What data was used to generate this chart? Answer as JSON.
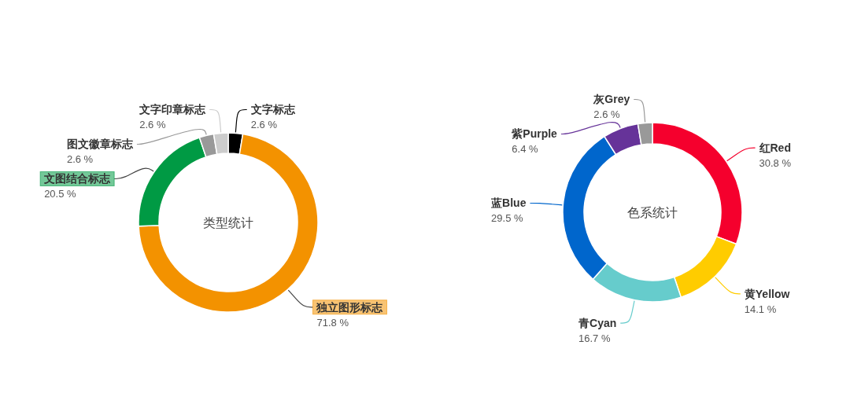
{
  "chart_data": [
    {
      "type": "donut",
      "title": "类型统计",
      "categories": [
        "文字标志",
        "独立图形标志",
        "文图结合标志",
        "图文徽章标志",
        "文字印章标志"
      ],
      "values": [
        2.6,
        71.8,
        20.5,
        2.6,
        2.6
      ],
      "value_labels": [
        "2.6 %",
        "71.8 %",
        "20.5 %",
        "2.6 %",
        "2.6 %"
      ],
      "colors": [
        "#000000",
        "#f39200",
        "#009a44",
        "#999999",
        "#cccccc"
      ]
    },
    {
      "type": "donut",
      "title": "色系统计",
      "categories": [
        "红Red",
        "黄Yellow",
        "青Cyan",
        "蓝Blue",
        "紫Purple",
        "灰Grey"
      ],
      "values": [
        30.8,
        14.1,
        16.7,
        29.5,
        6.4,
        2.6
      ],
      "value_labels": [
        "30.8 %",
        "14.1 %",
        "16.7 %",
        "29.5 %",
        "6.4 %",
        "2.6 %"
      ],
      "colors": [
        "#f5002d",
        "#ffcc00",
        "#66cccc",
        "#0066cc",
        "#663399",
        "#999999"
      ]
    }
  ]
}
